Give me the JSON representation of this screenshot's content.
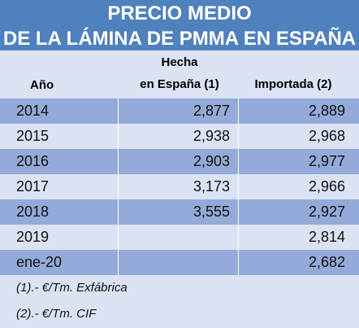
{
  "title": {
    "line1": "PRECIO MEDIO",
    "line2": "DE LA LÁMINA DE PMMA EN ESPAÑA"
  },
  "headers": {
    "year": "Año",
    "made_line1": "Hecha",
    "made_line2": "en España (1)",
    "imported": "Importada (2)"
  },
  "rows": [
    {
      "year": "2014",
      "made": "2,877",
      "imported": "2,889"
    },
    {
      "year": "2015",
      "made": "2,938",
      "imported": "2,968"
    },
    {
      "year": "2016",
      "made": "2,903",
      "imported": "2,977"
    },
    {
      "year": "2017",
      "made": "3,173",
      "imported": "2,966"
    },
    {
      "year": "2018",
      "made": "3,555",
      "imported": "2,927"
    },
    {
      "year": "2019",
      "made": "",
      "imported": "2,814"
    },
    {
      "year": "ene-20",
      "made": "",
      "imported": "2,682"
    }
  ],
  "notes": [
    "(1).- €/Tm. Exfábrica",
    "(2).- €/Tm. CIF"
  ],
  "colors": {
    "title_bg": "#4f81bd",
    "row_dark": "#94aad8",
    "row_light": "#dbe3f3"
  }
}
